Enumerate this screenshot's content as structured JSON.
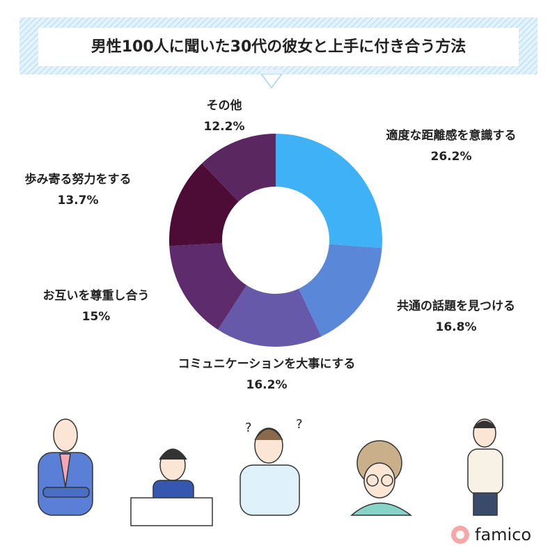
{
  "chart_data": {
    "type": "donut",
    "title": "男性100人に聞いた30代の彼女と上手に付き合う方法",
    "categories": [
      "適度な距離感を意識する",
      "共通の話題を見つける",
      "コミュニケーションを大事にする",
      "お互いを尊重し合う",
      "歩み寄る努力をする",
      "その他"
    ],
    "values": [
      26.2,
      16.8,
      16.2,
      15,
      13.7,
      12.2
    ],
    "value_labels": [
      "26.2%",
      "16.8%",
      "16.2%",
      "15%",
      "13.7%",
      "12.2%"
    ],
    "colors": [
      "#3fb1f6",
      "#5b87d9",
      "#6759a9",
      "#5e2b6c",
      "#4d0c36",
      "#5a2760"
    ]
  },
  "brand": "famico"
}
